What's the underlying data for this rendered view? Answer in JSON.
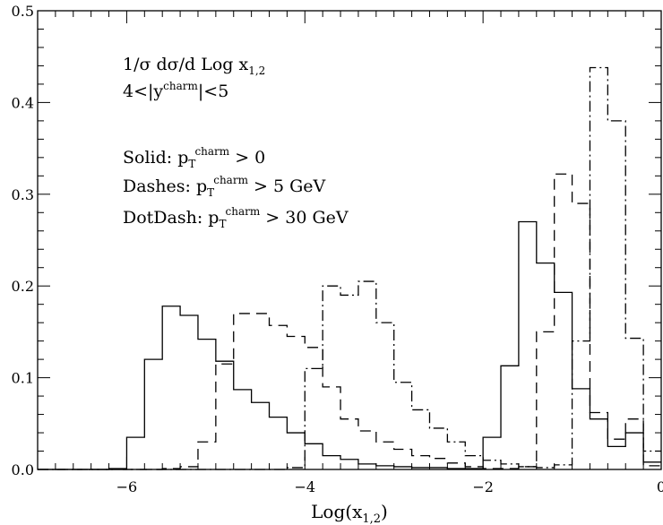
{
  "chart_data": {
    "type": "line",
    "style": "histogram-step",
    "xlabel": {
      "base": "Log(x",
      "sub": "1,2",
      "close": ")"
    },
    "ylabel": "",
    "xlim": [
      -7,
      0
    ],
    "ylim": [
      0,
      0.5
    ],
    "x_ticks": [
      -6,
      -4,
      -2,
      0
    ],
    "x_tick_labels": [
      "−6",
      "−4",
      "−2",
      "0"
    ],
    "y_ticks": [
      0,
      0.1,
      0.2,
      0.3,
      0.4,
      0.5
    ],
    "y_tick_labels": [
      "0.0",
      "0.1",
      "0.2",
      "0.3",
      "0.4",
      "0.5"
    ],
    "grid": false,
    "legend": "top-left",
    "bin_width": 0.2,
    "annotations": {
      "line1": {
        "prefix": "1/σ dσ/d Log x",
        "sub": "1,2"
      },
      "line2": {
        "a": "4<|y",
        "sup": "charm",
        "b": "|<5"
      },
      "line3": {
        "a": "Solid: p",
        "sub": "T",
        "sup": "charm",
        "b": " > 0"
      },
      "line4": {
        "a": "Dashes: p",
        "sub": "T",
        "sup": "charm",
        "b": " > 5 GeV"
      },
      "line5": {
        "a": "DotDash: p",
        "sub": "T",
        "sup": "charm",
        "b": " > 30 GeV"
      }
    },
    "series": [
      {
        "key": "solid",
        "dash": "",
        "x": [
          -7.0,
          -6.8,
          -6.6,
          -6.4,
          -6.2,
          -6.0,
          -5.8,
          -5.6,
          -5.4,
          -5.2,
          -5.0,
          -4.8,
          -4.6,
          -4.4,
          -4.2,
          -4.0,
          -3.8,
          -3.6,
          -3.4,
          -3.2,
          -3.0,
          -2.8,
          -2.6,
          -2.4,
          -2.2,
          -2.0,
          -1.8,
          -1.6,
          -1.4,
          -1.2,
          -1.0,
          -0.8,
          -0.6,
          -0.4,
          -0.2
        ],
        "values": [
          0,
          0,
          0,
          0,
          0.001,
          0.035,
          0.12,
          0.178,
          0.168,
          0.142,
          0.118,
          0.087,
          0.073,
          0.057,
          0.04,
          0.028,
          0.015,
          0.011,
          0.006,
          0.004,
          0.003,
          0.002,
          0.002,
          0.001,
          0.001,
          0.035,
          0.113,
          0.27,
          0.225,
          0.193,
          0.088,
          0.055,
          0.025,
          0.04,
          0.008
        ]
      },
      {
        "key": "dashes",
        "dash": "12,7",
        "x": [
          -7.0,
          -6.8,
          -6.6,
          -6.4,
          -6.2,
          -6.0,
          -5.8,
          -5.6,
          -5.4,
          -5.2,
          -5.0,
          -4.8,
          -4.6,
          -4.4,
          -4.2,
          -4.0,
          -3.8,
          -3.6,
          -3.4,
          -3.2,
          -3.0,
          -2.8,
          -2.6,
          -2.4,
          -2.2,
          -2.0,
          -1.8,
          -1.6,
          -1.4,
          -1.2,
          -1.0,
          -0.8,
          -0.6,
          -0.4,
          -0.2
        ],
        "values": [
          0,
          0,
          0,
          0,
          0,
          0,
          0,
          0.001,
          0.003,
          0.03,
          0.115,
          0.17,
          0.17,
          0.157,
          0.145,
          0.133,
          0.09,
          0.055,
          0.042,
          0.03,
          0.022,
          0.015,
          0.012,
          0.007,
          0.003,
          0.001,
          0.001,
          0.003,
          0.15,
          0.322,
          0.29,
          0.062,
          0.033,
          0.055,
          0.004
        ]
      },
      {
        "key": "dotdash",
        "dash": "12,4,2,4",
        "x": [
          -7.0,
          -6.8,
          -6.6,
          -6.4,
          -6.2,
          -6.0,
          -5.8,
          -5.6,
          -5.4,
          -5.2,
          -5.0,
          -4.8,
          -4.6,
          -4.4,
          -4.2,
          -4.0,
          -3.8,
          -3.6,
          -3.4,
          -3.2,
          -3.0,
          -2.8,
          -2.6,
          -2.4,
          -2.2,
          -2.0,
          -1.8,
          -1.6,
          -1.4,
          -1.2,
          -1.0,
          -0.8,
          -0.6,
          -0.4,
          -0.2
        ],
        "values": [
          0,
          0,
          0,
          0,
          0,
          0,
          0,
          0,
          0,
          0,
          0,
          0,
          0,
          0,
          0.002,
          0.11,
          0.2,
          0.19,
          0.205,
          0.16,
          0.095,
          0.065,
          0.045,
          0.03,
          0.015,
          0.01,
          0.006,
          0.003,
          0.002,
          0.005,
          0.14,
          0.438,
          0.38,
          0.143,
          0.02
        ]
      }
    ]
  }
}
